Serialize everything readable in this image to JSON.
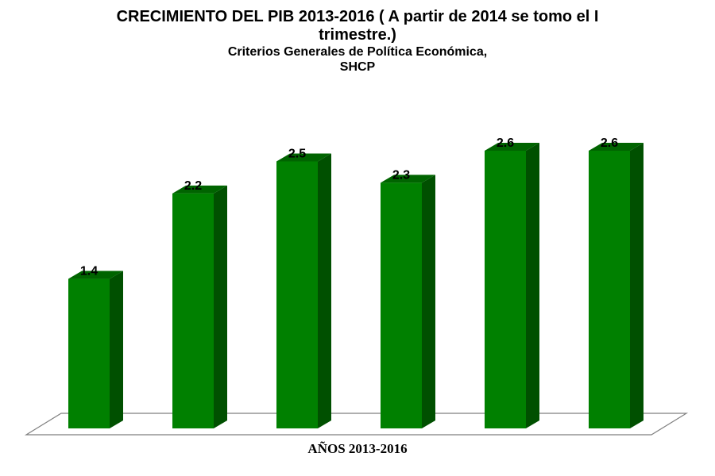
{
  "chart_data": {
    "type": "bar",
    "title_lines": [
      "CRECIMIENTO DEL PIB 2013-2016 ( A partir de 2014 se tomo el I",
      "trimestre.)"
    ],
    "subtitle_lines": [
      "Criterios Generales de Política Económica,",
      "SHCP"
    ],
    "xlabel": "AÑOS 2013-2016",
    "ylabel": "",
    "categories": [
      "",
      "",
      "",
      "",
      "",
      ""
    ],
    "values": [
      1.4,
      2.2,
      2.5,
      2.3,
      2.6,
      2.6
    ],
    "data_labels": [
      "1.4",
      "2.2",
      "2.5",
      "2.3",
      "2.6",
      "2.6"
    ],
    "ylim": [
      0,
      2.6
    ],
    "grid": false,
    "legend": "none",
    "colors": {
      "bar_front": "#008000",
      "bar_side": "#005000",
      "bar_top": "#006400",
      "floor": "#ffffff",
      "floor_edge": "#7f7f7f"
    }
  }
}
